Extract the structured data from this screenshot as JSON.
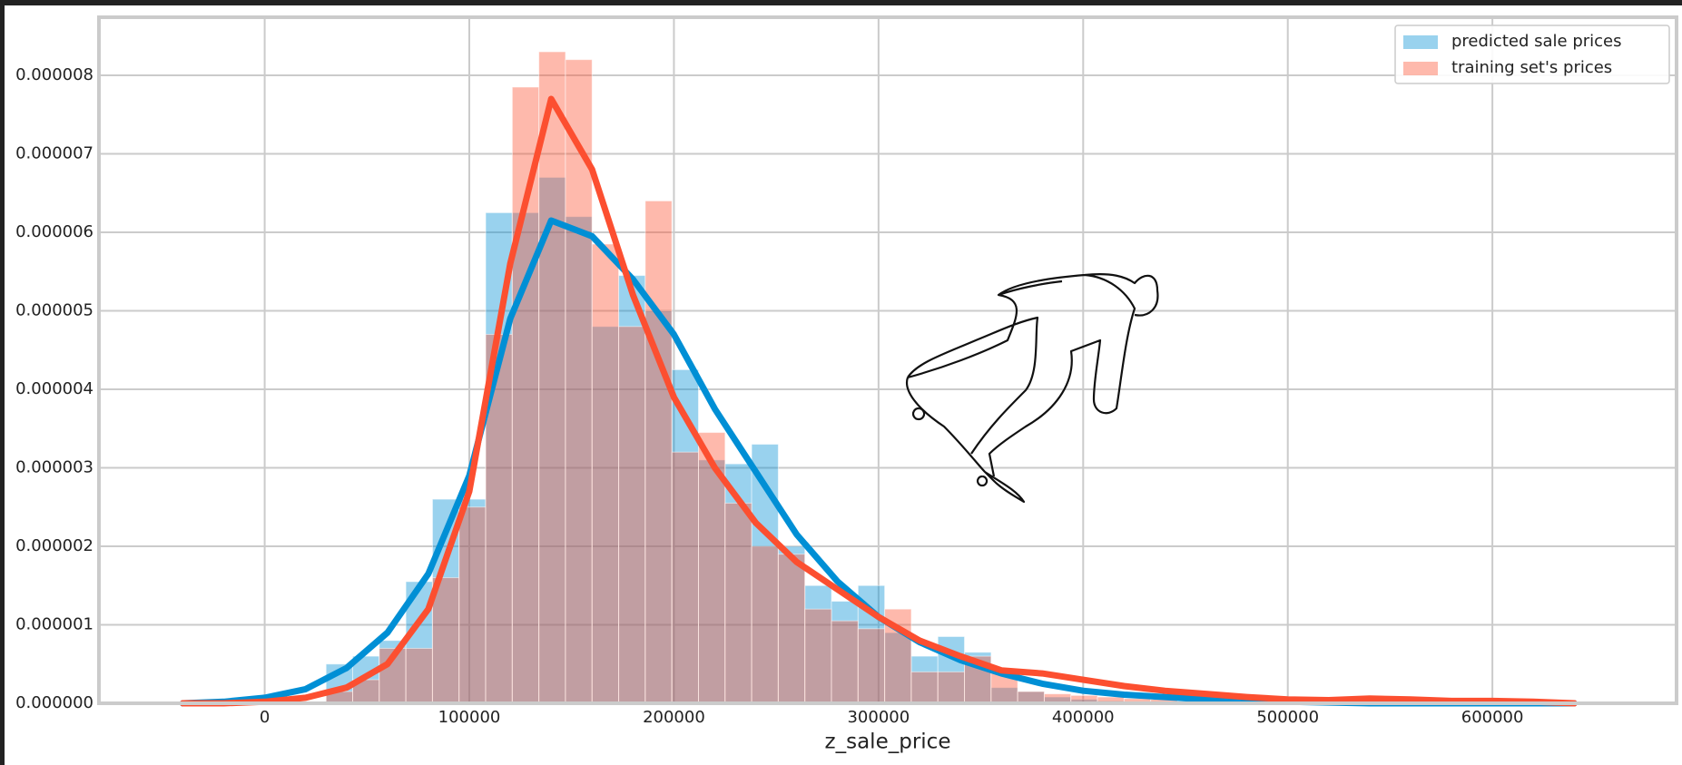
{
  "chart_data": {
    "type": "histogram",
    "xlabel": "z_sale_price",
    "bins": [
      30000,
      43000,
      56000,
      69000,
      82000,
      95000,
      108000,
      121000,
      134000,
      147000,
      160000,
      173000,
      186000,
      199000,
      212000,
      225000,
      238000,
      251000,
      264000,
      277000,
      290000,
      303000,
      316000,
      329000,
      342000,
      355000,
      368000,
      381000,
      394000,
      407000,
      420000,
      433000,
      446000
    ],
    "kde_x": [
      -40000,
      -20000,
      0,
      20000,
      40000,
      60000,
      80000,
      100000,
      120000,
      140000,
      160000,
      180000,
      200000,
      220000,
      240000,
      260000,
      280000,
      300000,
      320000,
      340000,
      360000,
      380000,
      400000,
      420000,
      440000,
      460000,
      480000,
      500000,
      520000,
      540000,
      560000,
      580000,
      600000,
      620000,
      640000
    ],
    "series": [
      {
        "name": "predicted sale prices",
        "color": "#008fd5",
        "values": [
          5e-07,
          6e-07,
          8e-07,
          1.55e-06,
          2.6e-06,
          2.6e-06,
          6.25e-06,
          6.25e-06,
          6.7e-06,
          6.2e-06,
          4.8e-06,
          5.45e-06,
          5e-06,
          4.25e-06,
          3.1e-06,
          3.05e-06,
          3.3e-06,
          2e-06,
          1.5e-06,
          1.3e-06,
          1.5e-06,
          9e-07,
          6e-07,
          8.5e-07,
          6.5e-07,
          2e-07,
          1.5e-07,
          8e-08,
          5e-08,
          3e-08,
          2e-08,
          1e-08
        ],
        "kde": [
          0,
          2e-08,
          7e-08,
          1.8e-07,
          4.5e-07,
          9e-07,
          1.65e-06,
          2.9e-06,
          4.9e-06,
          6.15e-06,
          5.95e-06,
          5.4e-06,
          4.7e-06,
          3.75e-06,
          2.95e-06,
          2.15e-06,
          1.55e-06,
          1.1e-06,
          7.8e-07,
          5.5e-07,
          3.8e-07,
          2.5e-07,
          1.6e-07,
          1.1e-07,
          8e-08,
          5e-08,
          3e-08,
          2e-08,
          1e-08,
          0,
          0,
          0,
          0,
          0,
          0
        ]
      },
      {
        "name": "training set's prices",
        "color": "#fc4f30",
        "values": [
          1.5e-07,
          3e-07,
          7e-07,
          7e-07,
          1.6e-06,
          2.5e-06,
          4.7e-06,
          7.85e-06,
          8.3e-06,
          8.2e-06,
          5.85e-06,
          4.8e-06,
          6.4e-06,
          3.2e-06,
          3.45e-06,
          2.55e-06,
          2e-06,
          1.9e-06,
          1.2e-06,
          1.05e-06,
          9.5e-07,
          1.2e-06,
          4e-07,
          4e-07,
          6e-07,
          4e-07,
          1.5e-07,
          1.2e-07,
          1e-07,
          8e-08,
          6e-08,
          5e-08
        ],
        "kde": [
          0,
          0,
          2e-08,
          7e-08,
          2e-07,
          5e-07,
          1.2e-06,
          2.7e-06,
          5.6e-06,
          7.7e-06,
          6.8e-06,
          5.2e-06,
          3.9e-06,
          3e-06,
          2.3e-06,
          1.8e-06,
          1.45e-06,
          1.1e-06,
          8e-07,
          6e-07,
          4.2e-07,
          3.8e-07,
          3e-07,
          2.2e-07,
          1.6e-07,
          1.2e-07,
          8e-08,
          5e-08,
          4e-08,
          6e-08,
          5e-08,
          3e-08,
          3e-08,
          2e-08,
          0
        ]
      }
    ],
    "xlim": [
      -81000,
      690000
    ],
    "ylim": [
      0,
      8.74e-06
    ],
    "xticks": [
      0,
      100000,
      200000,
      300000,
      400000,
      500000,
      600000
    ],
    "yticks": [
      {
        "value": 0,
        "label": "0.000000"
      },
      1e-06,
      2e-06,
      3e-06,
      4e-06,
      5e-06,
      6e-06,
      7e-06,
      8e-06
    ],
    "grid": true,
    "legend": "upper right"
  }
}
